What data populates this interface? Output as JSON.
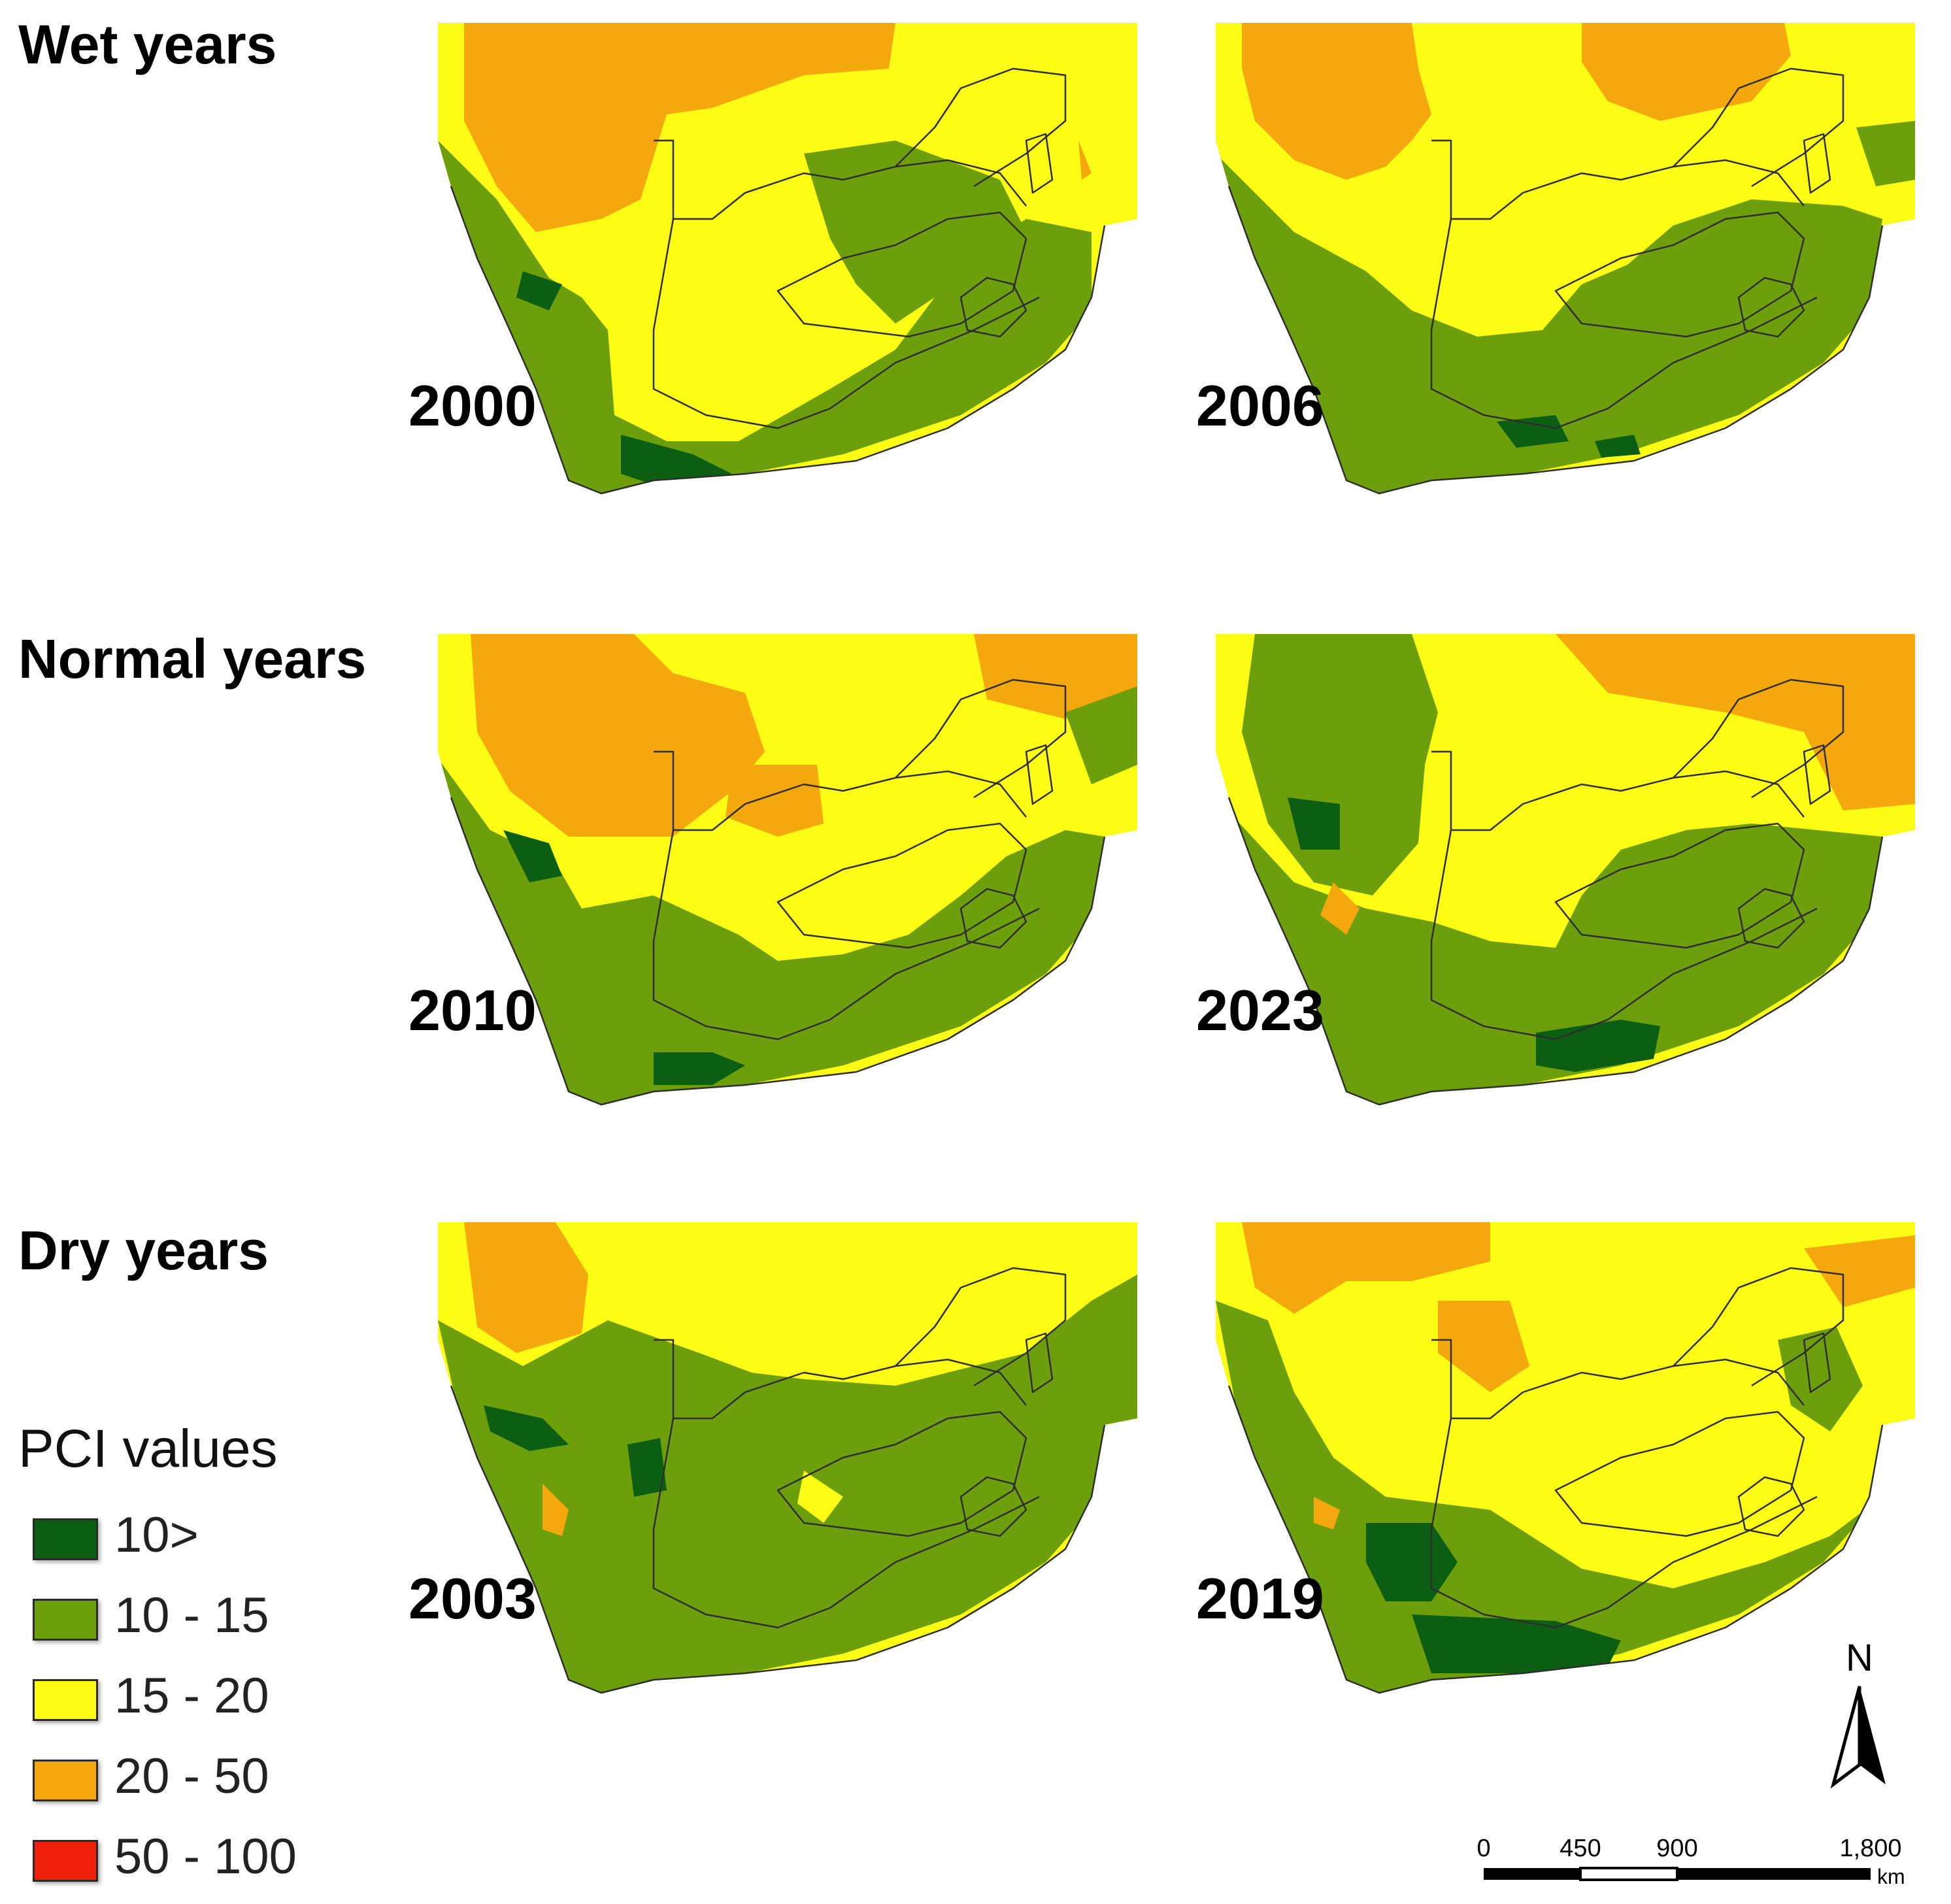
{
  "colors": {
    "pci_lt10": "#0b5e12",
    "pci_10_15": "#6d9e0c",
    "pci_15_20": "#fcfc14",
    "pci_20_50": "#f4a80e",
    "pci_50_100": "#f0200c",
    "border": "#2e2e2e"
  },
  "rows": [
    {
      "label": "Wet years",
      "maps": [
        {
          "year": "2000"
        },
        {
          "year": "2006"
        }
      ]
    },
    {
      "label": "Normal years",
      "maps": [
        {
          "year": "2010"
        },
        {
          "year": "2023"
        }
      ]
    },
    {
      "label": "Dry years",
      "maps": [
        {
          "year": "2003"
        },
        {
          "year": "2019"
        }
      ]
    }
  ],
  "legend": {
    "title": "PCI values",
    "items": [
      {
        "label": "10>",
        "color": "#0b5e12"
      },
      {
        "label": "10 - 15",
        "color": "#6d9e0c"
      },
      {
        "label": "15 - 20",
        "color": "#fcfc14"
      },
      {
        "label": "20 - 50",
        "color": "#f4a80e"
      },
      {
        "label": "50 - 100",
        "color": "#f0200c"
      }
    ]
  },
  "north_arrow": {
    "label": "N"
  },
  "scale_bar": {
    "ticks": [
      "0",
      "450",
      "900",
      "1,800"
    ],
    "unit": "km"
  }
}
